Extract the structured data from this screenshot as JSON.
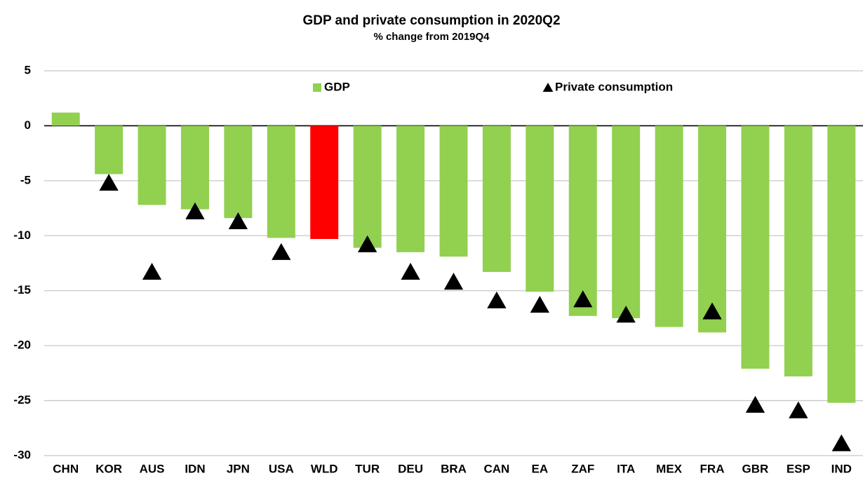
{
  "chart_data": {
    "type": "bar",
    "title": "GDP and private consumption in 2020Q2",
    "subtitle": "% change from 2019Q4",
    "categories": [
      "CHN",
      "KOR",
      "AUS",
      "IDN",
      "JPN",
      "USA",
      "WLD",
      "TUR",
      "DEU",
      "BRA",
      "CAN",
      "EA",
      "ZAF",
      "ITA",
      "MEX",
      "FRA",
      "GBR",
      "ESP",
      "IND"
    ],
    "series": [
      {
        "name": "GDP",
        "type": "bar",
        "color": "#92d050",
        "colors": [
          "#92d050",
          "#92d050",
          "#92d050",
          "#92d050",
          "#92d050",
          "#92d050",
          "#ff0000",
          "#92d050",
          "#92d050",
          "#92d050",
          "#92d050",
          "#92d050",
          "#92d050",
          "#92d050",
          "#92d050",
          "#92d050",
          "#92d050",
          "#92d050",
          "#92d050"
        ],
        "values": [
          1.2,
          -4.4,
          -7.2,
          -7.6,
          -8.4,
          -10.2,
          -10.3,
          -11.1,
          -11.5,
          -11.9,
          -13.3,
          -15.1,
          -17.3,
          -17.5,
          -18.3,
          -18.8,
          -22.1,
          -22.8,
          -25.2
        ]
      },
      {
        "name": "Private consumption",
        "type": "triangle",
        "color": "#000000",
        "values": [
          null,
          -5.2,
          -13.3,
          -7.8,
          -8.7,
          -11.5,
          null,
          -10.8,
          -13.3,
          -14.2,
          -15.9,
          -16.3,
          -15.8,
          -17.2,
          null,
          -16.9,
          -25.4,
          -25.9,
          -28.9
        ]
      }
    ],
    "ylim": [
      -30,
      5
    ],
    "yticks": [
      5,
      0,
      -5,
      -10,
      -15,
      -20,
      -25,
      -30
    ],
    "grid": true
  }
}
